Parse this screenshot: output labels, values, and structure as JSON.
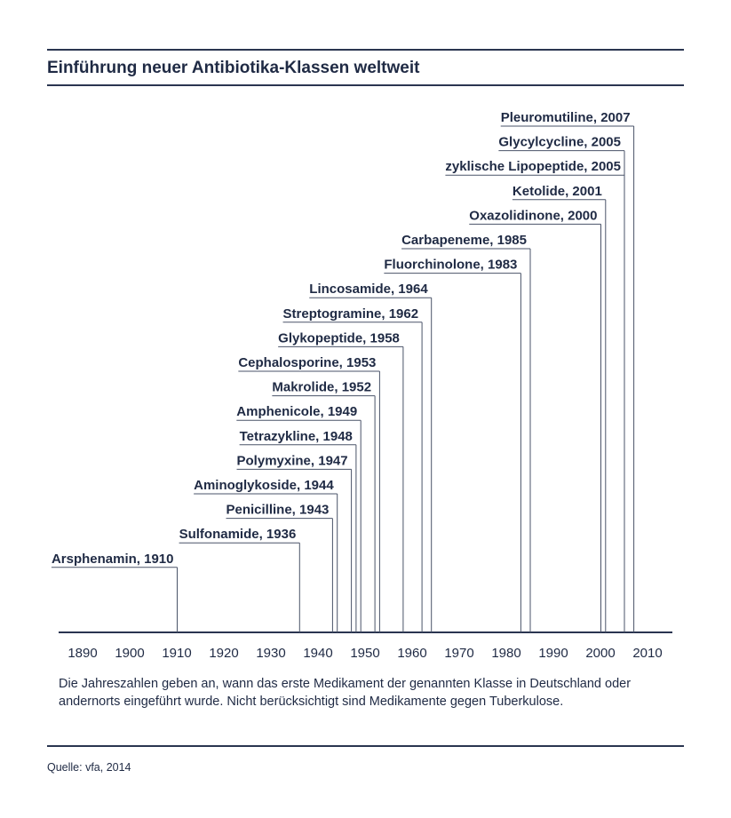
{
  "title": "Einführung neuer Antibiotika-Klassen weltweit",
  "footnote": "Die Jahreszahlen geben an, wann das erste Medikament der genannten Klasse in Deutschland oder andernorts eingeführt wurde. Nicht berücksichtigt sind Medikamente gegen Tuberkulose.",
  "source": "Quelle: vfa, 2014",
  "colors": {
    "ink": "#1f2a44",
    "line": "#4a5368"
  },
  "chart_data": {
    "type": "timeline",
    "title": "Einführung neuer Antibiotika-Klassen weltweit",
    "xlim": [
      1885,
      2015
    ],
    "x_ticks": [
      1890,
      1900,
      1910,
      1920,
      1930,
      1940,
      1950,
      1960,
      1970,
      1980,
      1990,
      2000,
      2010
    ],
    "events": [
      {
        "label": "Arsphenamin, 1910",
        "year": 1910
      },
      {
        "label": "Sulfonamide, 1936",
        "year": 1936
      },
      {
        "label": "Penicilline, 1943",
        "year": 1943
      },
      {
        "label": "Aminoglykoside, 1944",
        "year": 1944
      },
      {
        "label": "Polymyxine, 1947",
        "year": 1947
      },
      {
        "label": "Tetrazykline, 1948",
        "year": 1948
      },
      {
        "label": "Amphenicole, 1949",
        "year": 1949
      },
      {
        "label": "Makrolide, 1952",
        "year": 1952
      },
      {
        "label": "Cephalosporine, 1953",
        "year": 1953
      },
      {
        "label": "Glykopeptide, 1958",
        "year": 1958
      },
      {
        "label": "Streptogramine, 1962",
        "year": 1962
      },
      {
        "label": "Lincosamide, 1964",
        "year": 1964
      },
      {
        "label": "Fluorchinolone, 1983",
        "year": 1983
      },
      {
        "label": "Carbapeneme, 1985",
        "year": 1985
      },
      {
        "label": "Oxazolidinone, 2000",
        "year": 2000
      },
      {
        "label": "Ketolide, 2001",
        "year": 2001
      },
      {
        "label": "zyklische Lipopeptide, 2005",
        "year": 2005
      },
      {
        "label": "Glycylcycline, 2005",
        "year": 2005
      },
      {
        "label": "Pleuromutiline, 2007",
        "year": 2007
      }
    ]
  }
}
